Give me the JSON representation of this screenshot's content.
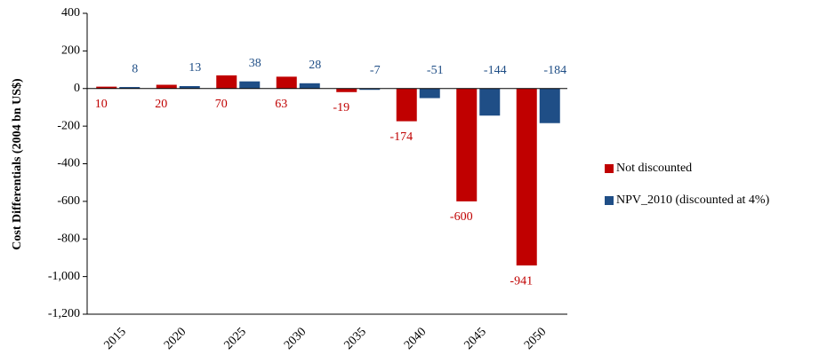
{
  "chart_data": {
    "type": "bar",
    "y_label": "Cost Differentials (2004 bn US$)",
    "categories": [
      "2015",
      "2020",
      "2025",
      "2030",
      "2035",
      "2040",
      "2045",
      "2050"
    ],
    "series": [
      {
        "name": "Not discounted",
        "color": "#c00000",
        "values": [
          10,
          20,
          70,
          63,
          -19,
          -174,
          -600,
          -941
        ]
      },
      {
        "name": "NPV_2010 (discounted at 4%)",
        "color": "#1f4e86",
        "values": [
          8,
          13,
          38,
          28,
          -7,
          -51,
          -144,
          -184
        ]
      }
    ],
    "ylim": [
      -1200,
      400
    ],
    "yticks": [
      400,
      200,
      0,
      -200,
      -400,
      -600,
      -800,
      {
        "value": -1000,
        "label": "-1,000"
      },
      {
        "value": -1200,
        "label": "-1,200"
      }
    ],
    "legend": "right",
    "grid": false
  }
}
